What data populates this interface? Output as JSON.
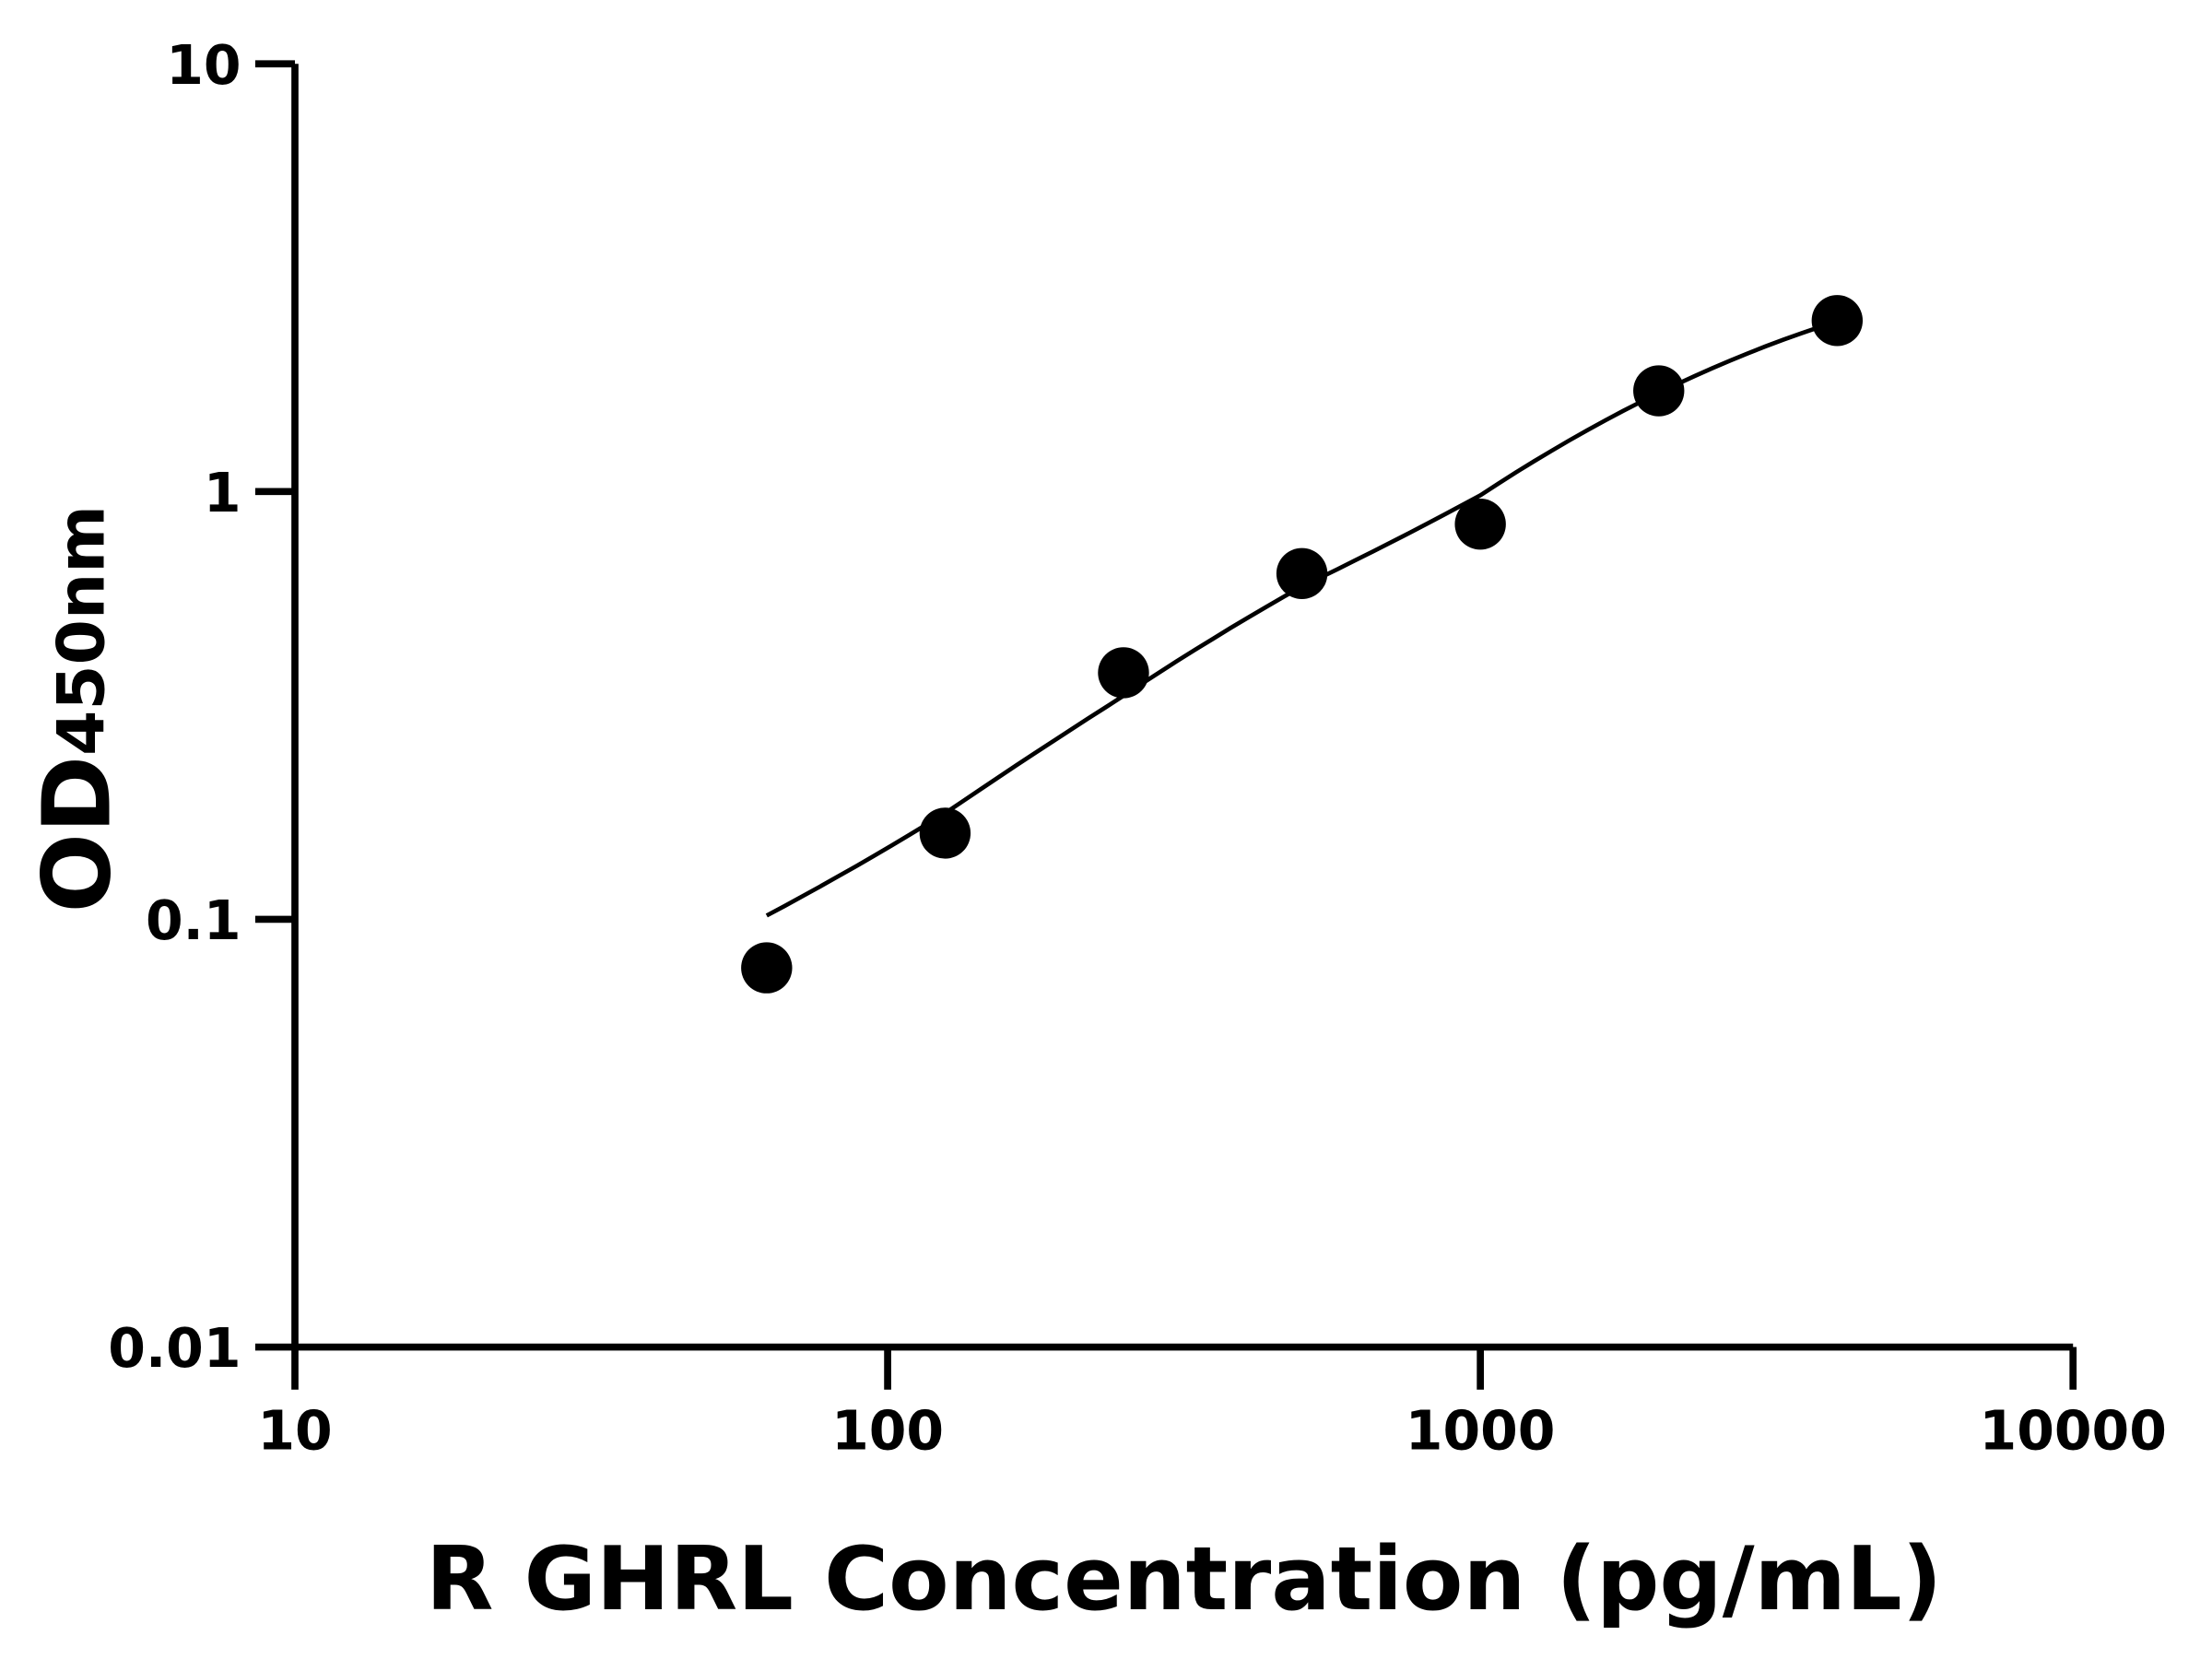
{
  "chart_data": {
    "type": "scatter",
    "title": "",
    "xlabel": "R GHRL Concentration (pg/mL)",
    "ylabel": {
      "main": "OD",
      "subscript": "450nm"
    },
    "x_scale": "log",
    "y_scale": "log",
    "xlim": [
      10,
      10000
    ],
    "ylim": [
      0.01,
      10
    ],
    "x_ticks": [
      "10",
      "100",
      "1000",
      "10000"
    ],
    "y_ticks": [
      "0.01",
      "0.1",
      "1",
      "10"
    ],
    "grid": false,
    "legend": "none",
    "points": {
      "x": [
        62.5,
        125,
        250,
        500,
        1000,
        2000,
        4000
      ],
      "y": [
        0.077,
        0.159,
        0.377,
        0.643,
        0.839,
        1.72,
        2.51
      ]
    },
    "fit_curve": {
      "x": [
        62.5,
        125,
        250,
        500,
        1000,
        2000,
        4000
      ],
      "y": [
        0.102,
        0.177,
        0.333,
        0.6,
        0.98,
        1.7,
        2.5
      ]
    },
    "colors": {
      "points": "#000000",
      "curve": "#000000",
      "axes": "#000000"
    }
  }
}
